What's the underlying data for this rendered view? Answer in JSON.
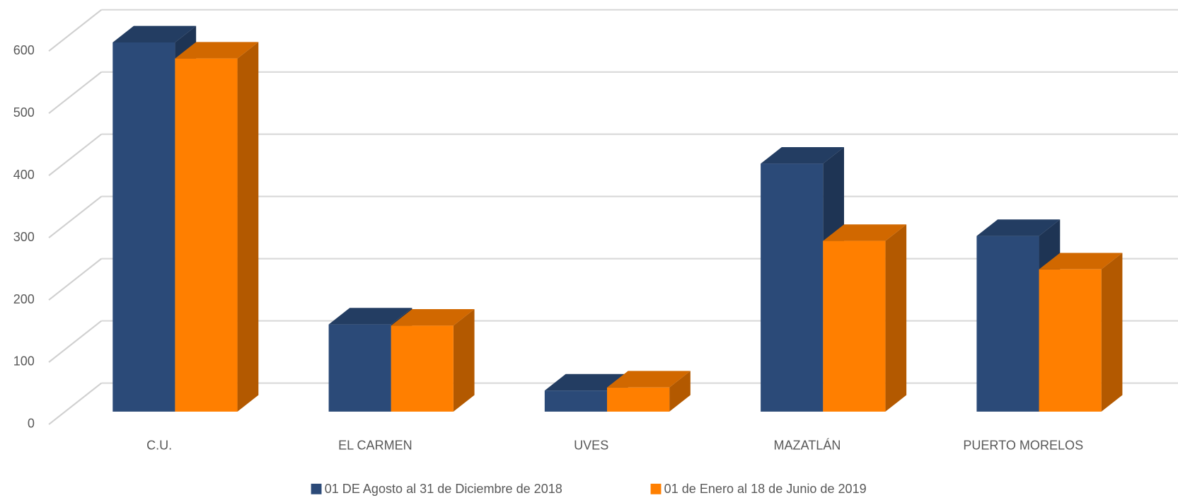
{
  "chart_data": {
    "type": "bar3d",
    "categories": [
      "C.U.",
      "EL CARMEN",
      "UVES",
      "MAZATLÁN",
      "PUERTO MORELOS"
    ],
    "series": [
      {
        "name": "01 DE Agosto al 31 de Diciembre de 2018",
        "color": "#2b4a78",
        "values": [
          597,
          141,
          34,
          401,
          284
        ]
      },
      {
        "name": "01 de Enero al 18 de Junio de 2019",
        "color": "#ff7f00",
        "values": [
          571,
          139,
          39,
          276,
          230
        ]
      }
    ],
    "ylim": [
      0,
      600
    ],
    "yticks": [
      0,
      100,
      200,
      300,
      400,
      500,
      600
    ],
    "grid": true,
    "legend": "bottom"
  }
}
